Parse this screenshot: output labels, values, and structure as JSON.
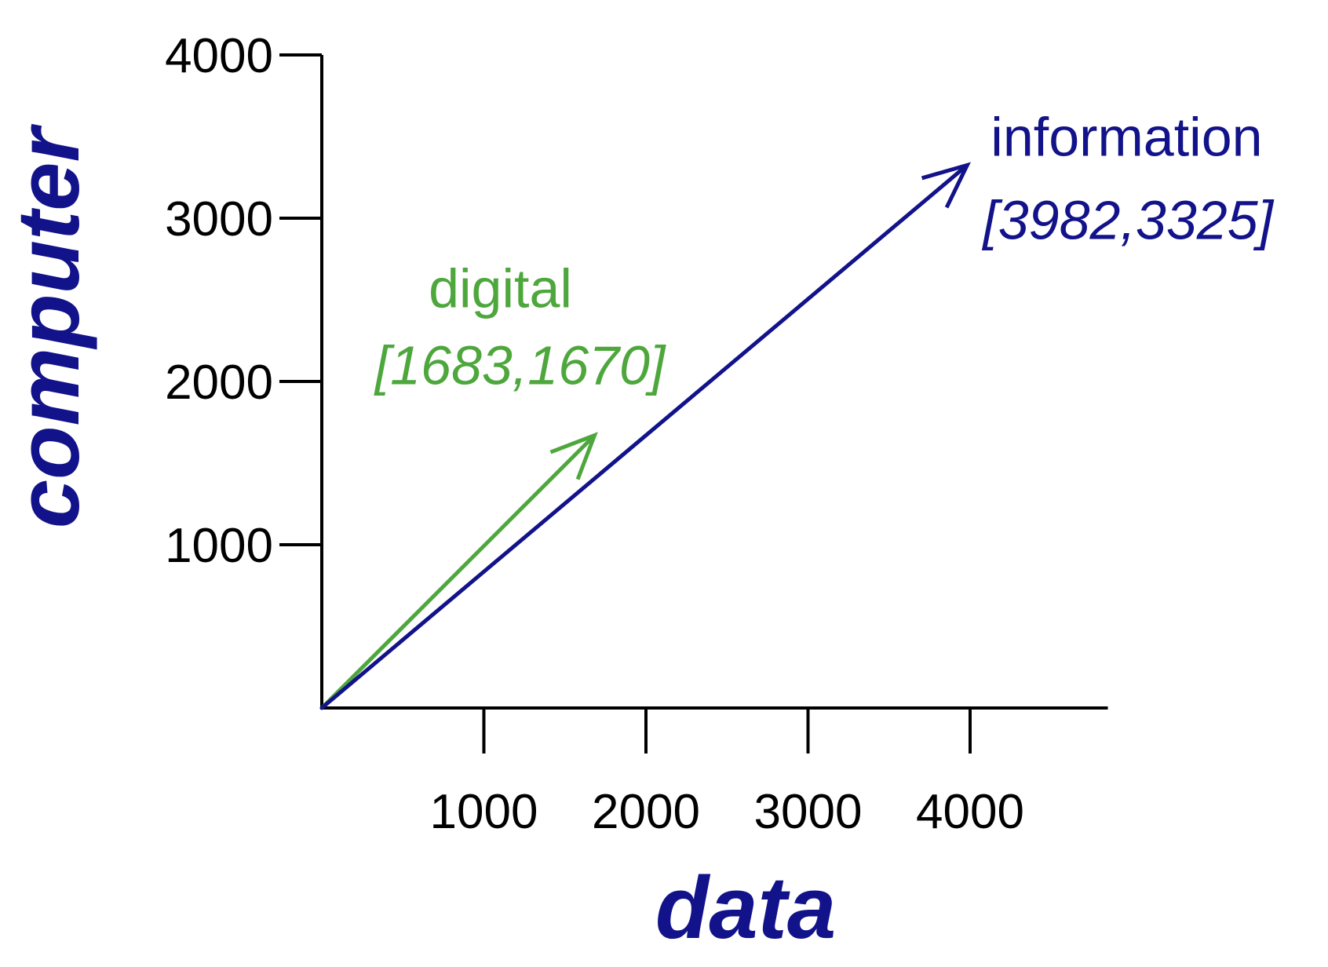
{
  "chart_data": {
    "type": "vector",
    "xlabel": "data",
    "ylabel": "computer",
    "xlim": [
      0,
      4850
    ],
    "ylim": [
      0,
      4000
    ],
    "x_ticks": [
      1000,
      2000,
      3000,
      4000
    ],
    "y_ticks": [
      1000,
      2000,
      3000,
      4000
    ],
    "x_tick_labels": [
      "1000",
      "2000",
      "3000",
      "4000"
    ],
    "y_tick_labels": [
      "1000",
      "2000",
      "3000",
      "4000"
    ],
    "grid": false,
    "legend": "none",
    "axis_title_color": "#12128a",
    "series": [
      {
        "name": "digital",
        "coords_label": "[1683,1670]",
        "x": 1683,
        "y": 1670,
        "color": "#4ea73d"
      },
      {
        "name": "information",
        "coords_label": "[3982,3325]",
        "x": 3982,
        "y": 3325,
        "color": "#12128a"
      }
    ]
  }
}
